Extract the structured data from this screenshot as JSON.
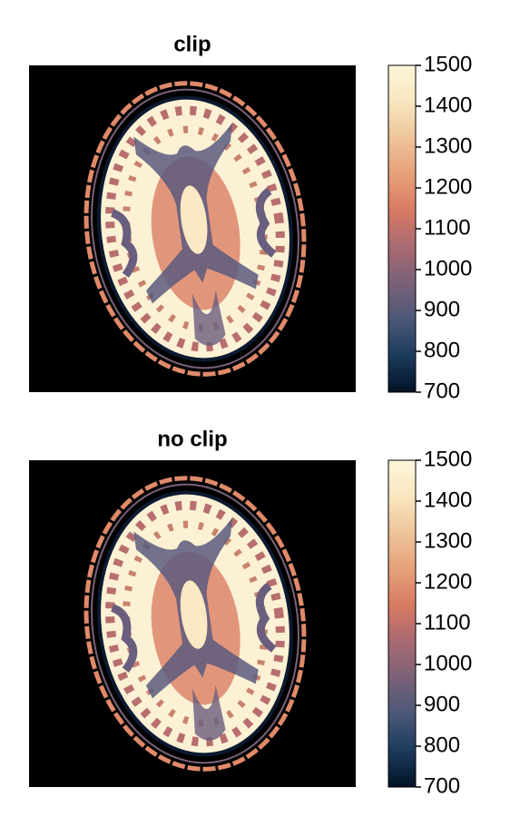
{
  "chart_data": [
    {
      "type": "heatmap",
      "title": "clip",
      "clim": [
        700,
        1500
      ],
      "ticks": [
        700,
        800,
        900,
        1000,
        1100,
        1200,
        1300,
        1400,
        1500
      ],
      "colormap": [
        "#031326",
        "#1b3a5c",
        "#4b5878",
        "#7a6178",
        "#a86a72",
        "#d87a62",
        "#e6a07a",
        "#eec49a",
        "#f8e6c0",
        "#fdf6da"
      ]
    },
    {
      "type": "heatmap",
      "title": "no clip",
      "clim": [
        700,
        1500
      ],
      "ticks": [
        700,
        800,
        900,
        1000,
        1100,
        1200,
        1300,
        1400,
        1500
      ],
      "colormap": [
        "#031326",
        "#1b3a5c",
        "#4b5878",
        "#7a6178",
        "#a86a72",
        "#d87a62",
        "#e6a07a",
        "#eec49a",
        "#f8e6c0",
        "#fdf6da"
      ]
    }
  ]
}
